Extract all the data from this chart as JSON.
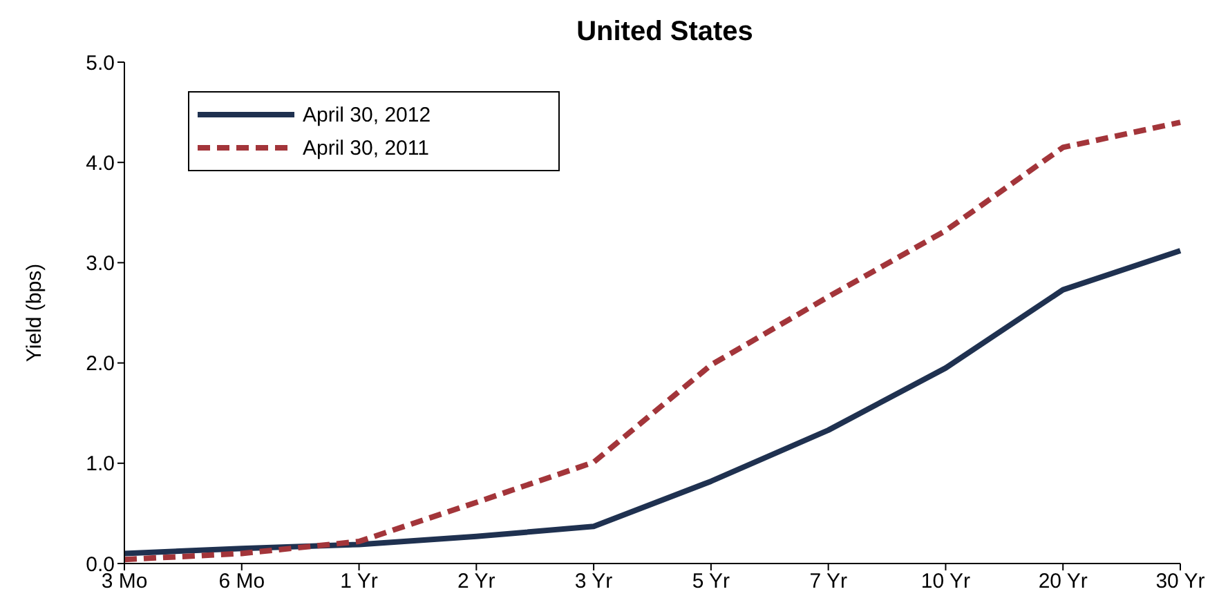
{
  "chart_data": {
    "type": "line",
    "title": "United States",
    "ylabel": "Yield (bps)",
    "categories": [
      "3 Mo",
      "6 Mo",
      "1 Yr",
      "2 Yr",
      "3 Yr",
      "5 Yr",
      "7 Yr",
      "10 Yr",
      "20 Yr",
      "30 Yr"
    ],
    "series": [
      {
        "name": "April 30, 2012",
        "color": "#1f3150",
        "line_style": "solid",
        "values": [
          0.1,
          0.15,
          0.19,
          0.27,
          0.37,
          0.82,
          1.33,
          1.95,
          2.73,
          3.12
        ]
      },
      {
        "name": "April 30, 2011",
        "color": "#a3353a",
        "line_style": "dashed",
        "values": [
          0.04,
          0.1,
          0.22,
          0.61,
          1.01,
          1.98,
          2.66,
          3.32,
          4.15,
          4.4
        ]
      }
    ],
    "ylim": [
      0,
      5
    ],
    "yticks": [
      {
        "value": 0,
        "label": "0.0"
      },
      {
        "value": 1,
        "label": "1.0"
      },
      {
        "value": 2,
        "label": "2.0"
      },
      {
        "value": 3,
        "label": "3.0"
      },
      {
        "value": 4,
        "label": "4.0"
      },
      {
        "value": 5,
        "label": "5.0"
      }
    ],
    "grid": false,
    "legend": "top left",
    "marker": "none"
  }
}
